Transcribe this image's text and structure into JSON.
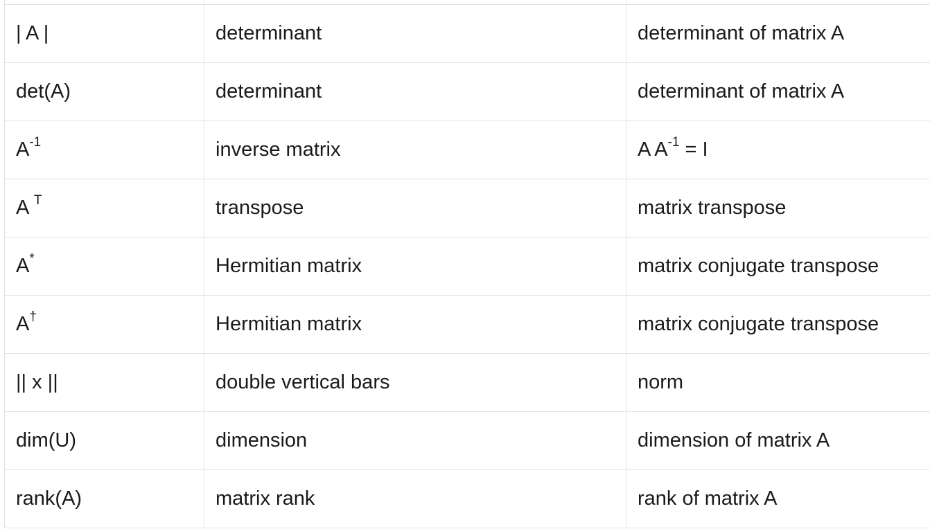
{
  "table": {
    "rows": [
      {
        "symbol": {
          "base": "",
          "sup": "",
          "after": ""
        },
        "name": "",
        "meaning": {
          "base": "",
          "sup": "",
          "after": ""
        }
      },
      {
        "symbol": {
          "base": "| A |",
          "sup": "",
          "after": ""
        },
        "name": "determinant",
        "meaning": {
          "base": "determinant of matrix A",
          "sup": "",
          "after": ""
        }
      },
      {
        "symbol": {
          "base": "det(A)",
          "sup": "",
          "after": ""
        },
        "name": "determinant",
        "meaning": {
          "base": "determinant of matrix A",
          "sup": "",
          "after": ""
        }
      },
      {
        "symbol": {
          "base": "A",
          "sup": "-1",
          "after": ""
        },
        "name": "inverse matrix",
        "meaning": {
          "base": "A A",
          "sup": "-1",
          "after": " = I"
        }
      },
      {
        "symbol": {
          "base": "A ",
          "sup": "T",
          "after": ""
        },
        "name": "transpose",
        "meaning": {
          "base": "matrix transpose",
          "sup": "",
          "after": ""
        }
      },
      {
        "symbol": {
          "base": "A",
          "sup": "*",
          "after": ""
        },
        "name": "Hermitian matrix",
        "meaning": {
          "base": "matrix conjugate transpose",
          "sup": "",
          "after": ""
        }
      },
      {
        "symbol": {
          "base": "A",
          "sup": "†",
          "after": ""
        },
        "name": "Hermitian matrix",
        "meaning": {
          "base": "matrix conjugate transpose",
          "sup": "",
          "after": ""
        }
      },
      {
        "symbol": {
          "base": "|| x ||",
          "sup": "",
          "after": ""
        },
        "name": "double vertical bars",
        "meaning": {
          "base": "norm",
          "sup": "",
          "after": ""
        }
      },
      {
        "symbol": {
          "base": "dim(U)",
          "sup": "",
          "after": ""
        },
        "name": "dimension",
        "meaning": {
          "base": "dimension of matrix A",
          "sup": "",
          "after": ""
        }
      },
      {
        "symbol": {
          "base": "rank(A)",
          "sup": "",
          "after": ""
        },
        "name": "matrix rank",
        "meaning": {
          "base": "rank of matrix A",
          "sup": "",
          "after": ""
        }
      }
    ]
  }
}
